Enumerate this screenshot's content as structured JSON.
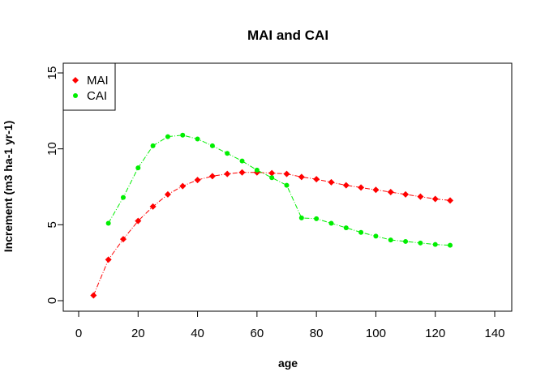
{
  "chart_data": {
    "type": "line",
    "title": "MAI and CAI",
    "xlabel": "age",
    "ylabel": "Increment (m3 ha-1 yr-1)",
    "xlim": [
      0,
      140
    ],
    "ylim": [
      0,
      15
    ],
    "xticks": [
      0,
      20,
      40,
      60,
      80,
      100,
      120,
      140
    ],
    "yticks": [
      0,
      5,
      10,
      15
    ],
    "grid": false,
    "legend_position": "top-left",
    "series": [
      {
        "name": "MAI",
        "color": "#ff0000",
        "marker": "diamond",
        "line": "dashed",
        "x": [
          5,
          10,
          15,
          20,
          25,
          30,
          35,
          40,
          45,
          50,
          55,
          60,
          65,
          70,
          75,
          80,
          85,
          90,
          95,
          100,
          105,
          110,
          115,
          120,
          125
        ],
        "y": [
          0.35,
          2.7,
          4.05,
          5.25,
          6.2,
          7.0,
          7.55,
          7.95,
          8.2,
          8.35,
          8.45,
          8.45,
          8.4,
          8.35,
          8.15,
          8.0,
          7.8,
          7.6,
          7.45,
          7.3,
          7.15,
          7.0,
          6.85,
          6.7,
          6.6
        ]
      },
      {
        "name": "CAI",
        "color": "#00ee00",
        "marker": "circle",
        "line": "dashed",
        "x": [
          10,
          15,
          20,
          25,
          30,
          35,
          40,
          45,
          50,
          55,
          60,
          65,
          70,
          75,
          80,
          85,
          90,
          95,
          100,
          105,
          110,
          115,
          120,
          125
        ],
        "y": [
          5.1,
          6.8,
          8.75,
          10.2,
          10.8,
          10.9,
          10.65,
          10.2,
          9.7,
          9.2,
          8.6,
          8.1,
          7.6,
          5.45,
          5.4,
          5.1,
          4.8,
          4.5,
          4.25,
          4.0,
          3.9,
          3.8,
          3.7,
          3.65
        ]
      }
    ]
  }
}
